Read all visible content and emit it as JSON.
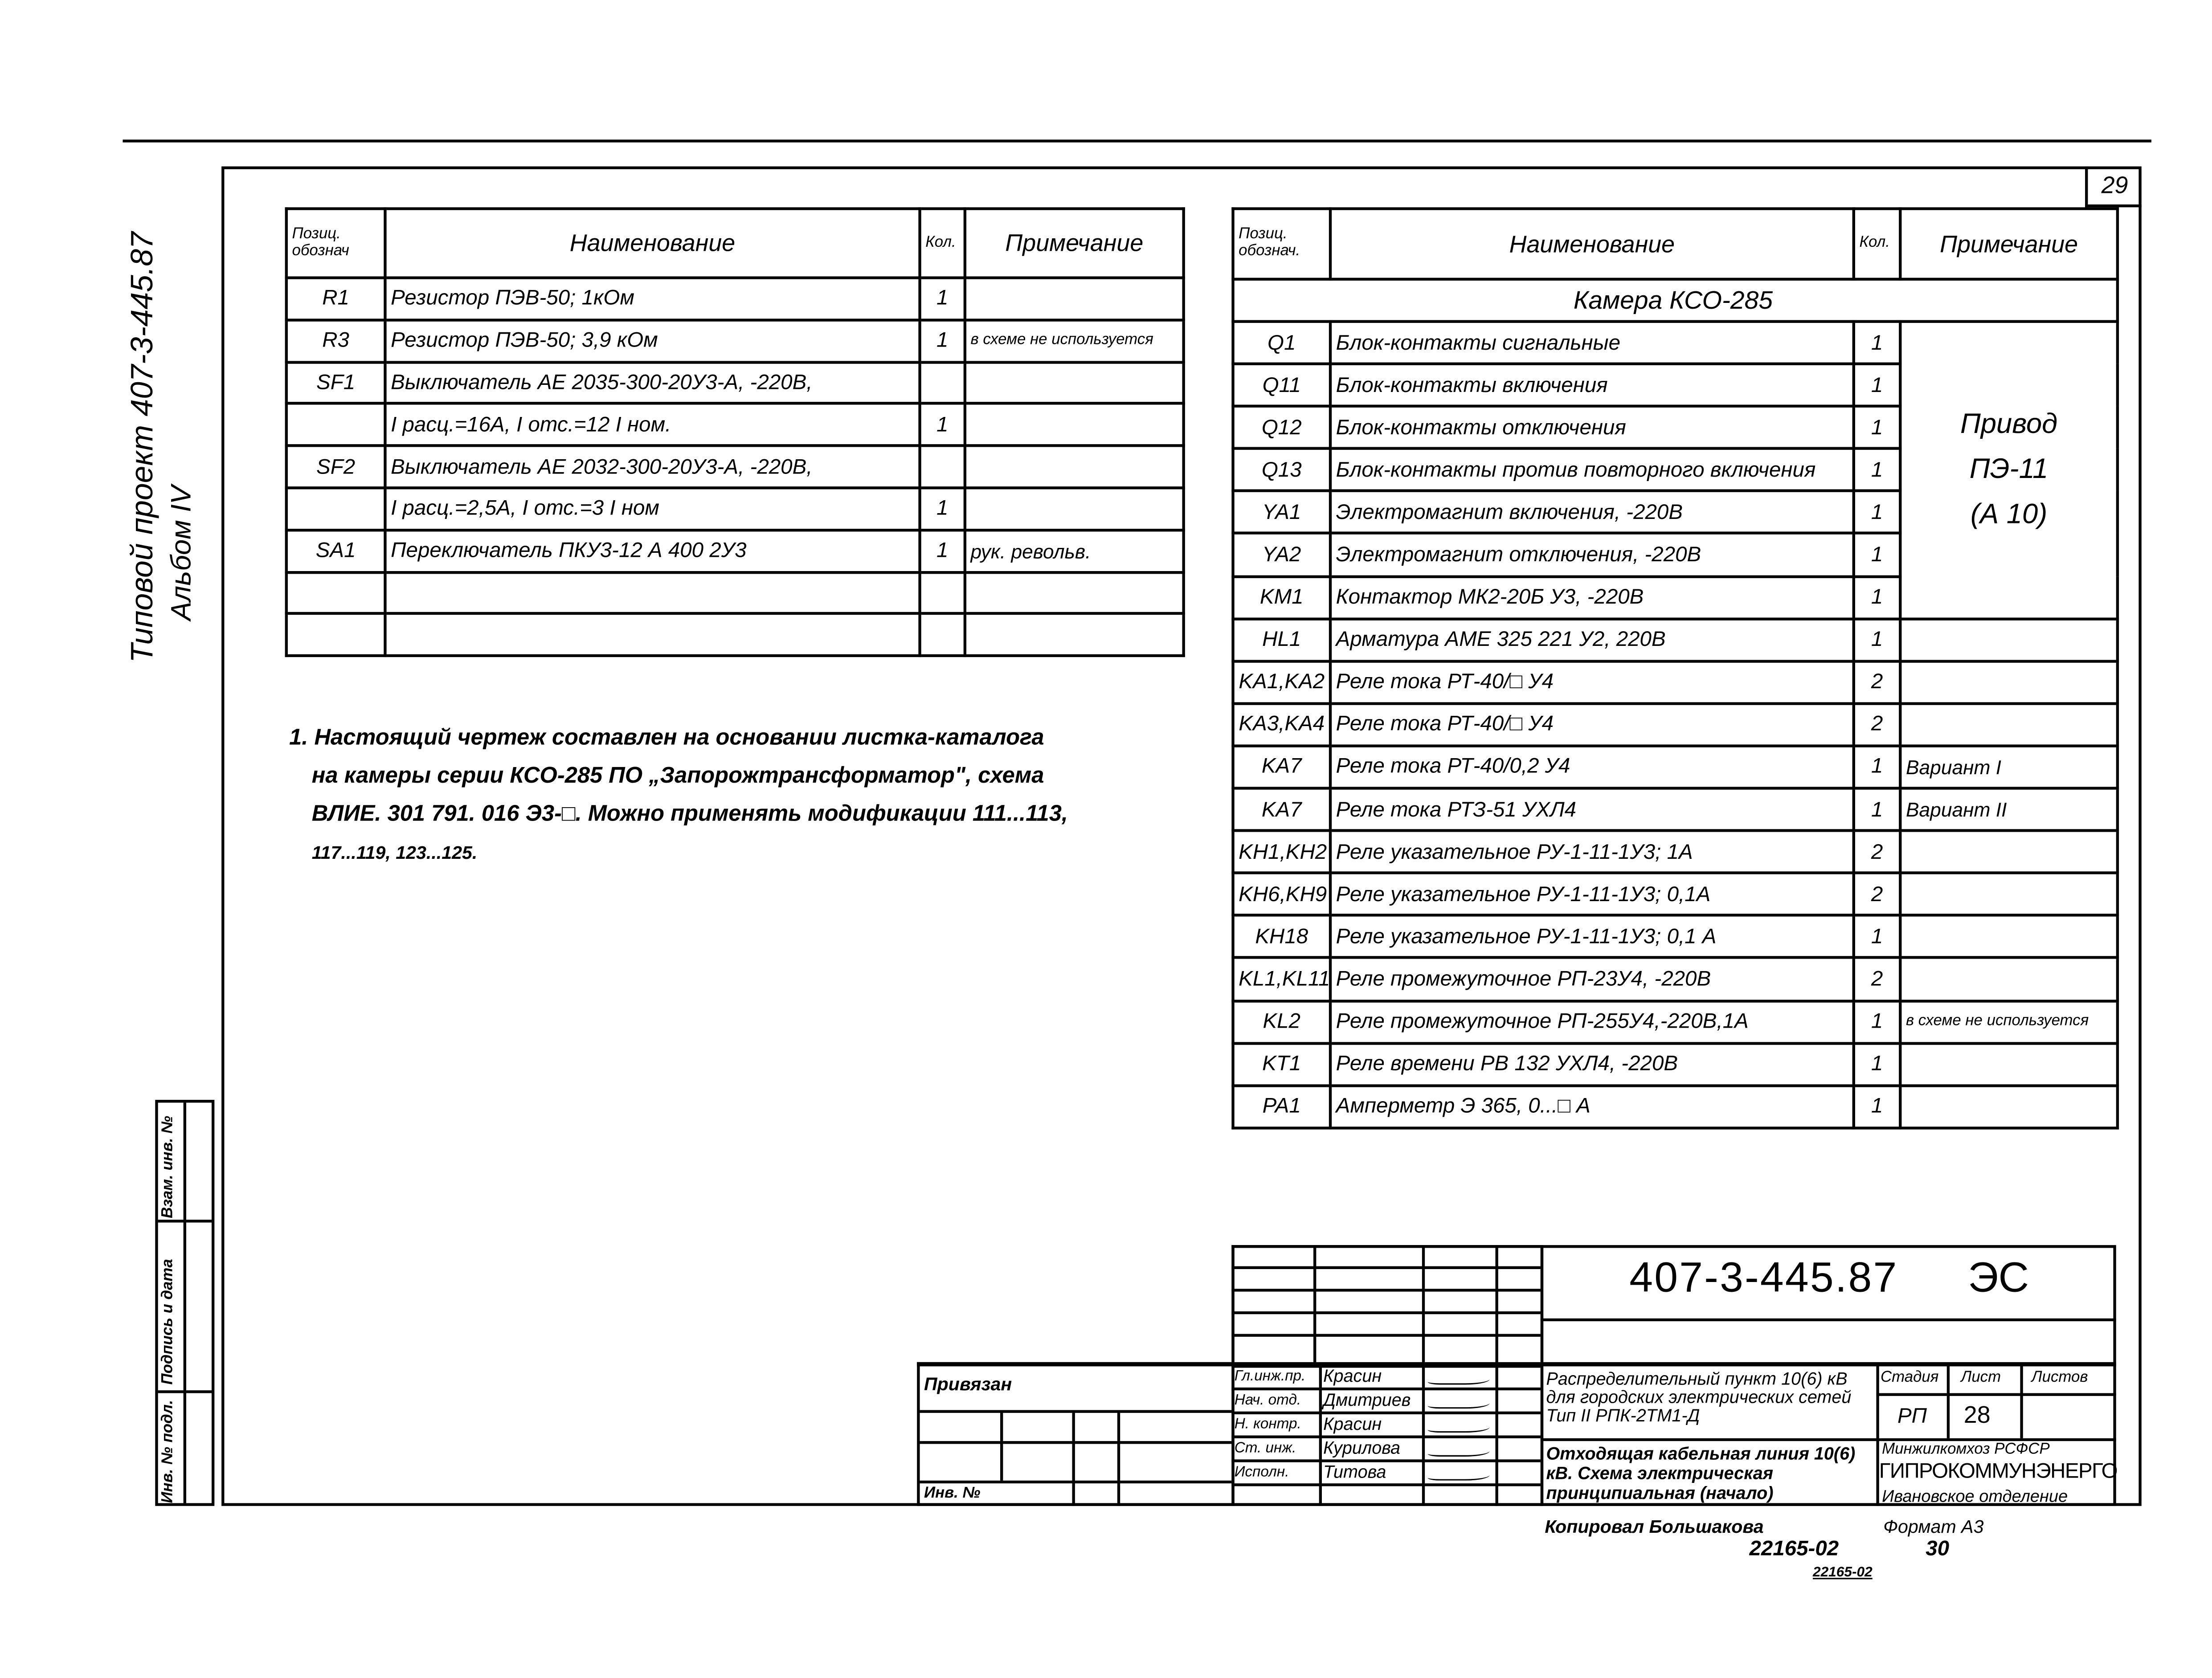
{
  "page_number": "29",
  "side_label": {
    "project": "Типовой проект 407-3-445.87",
    "album": "Альбом IV"
  },
  "side_stamp": [
    "Инв. № подл.",
    "Подпись и дата",
    "Взам. инв. №"
  ],
  "left_table": {
    "headers": [
      "Позиц. обознач",
      "Наименование",
      "Кол.",
      "Примечание"
    ],
    "rows": [
      {
        "pos": "R1",
        "name": "Резистор ПЭВ-50; 1кОм",
        "qty": "1",
        "note": ""
      },
      {
        "pos": "R3",
        "name": "Резистор ПЭВ-50; 3,9 кОм",
        "qty": "1",
        "note": "в схеме не используется"
      },
      {
        "pos": "SF1",
        "name": "Выключатель АЕ 2035-300-20У3-А, -220В,",
        "qty": "",
        "note": ""
      },
      {
        "pos": "",
        "name": "I расц.=16А, I отс.=12 I ном.",
        "qty": "1",
        "note": ""
      },
      {
        "pos": "SF2",
        "name": "Выключатель АЕ 2032-300-20У3-А, -220В,",
        "qty": "",
        "note": ""
      },
      {
        "pos": "",
        "name": "I расц.=2,5А, I отс.=3 I ном",
        "qty": "1",
        "note": ""
      },
      {
        "pos": "SA1",
        "name": "Переключатель ПКУ3-12 А 400 2У3",
        "qty": "1",
        "note": "рук. револьв."
      },
      {
        "pos": "",
        "name": "",
        "qty": "",
        "note": ""
      },
      {
        "pos": "",
        "name": "",
        "qty": "",
        "note": ""
      }
    ]
  },
  "right_table": {
    "headers": [
      "Позиц. обознач.",
      "Наименование",
      "Кол.",
      "Примечание"
    ],
    "section": "Камера КСО-285",
    "drive_note": [
      "Привод",
      "ПЭ-11",
      "(А 10)"
    ],
    "rows": [
      {
        "pos": "Q1",
        "name": "Блок-контакты сигнальные",
        "qty": "1",
        "note": ""
      },
      {
        "pos": "Q11",
        "name": "Блок-контакты включения",
        "qty": "1",
        "note": ""
      },
      {
        "pos": "Q12",
        "name": "Блок-контакты отключения",
        "qty": "1",
        "note": ""
      },
      {
        "pos": "Q13",
        "name": "Блок-контакты против повторного включения",
        "qty": "1",
        "note": ""
      },
      {
        "pos": "YA1",
        "name": "Электромагнит включения, -220В",
        "qty": "1",
        "note": ""
      },
      {
        "pos": "YA2",
        "name": "Электромагнит отключения, -220В",
        "qty": "1",
        "note": ""
      },
      {
        "pos": "KM1",
        "name": "Контактор МК2-20Б У3, -220В",
        "qty": "1",
        "note": ""
      },
      {
        "pos": "HL1",
        "name": "Арматура АМЕ 325 221 У2, 220В",
        "qty": "1",
        "note": ""
      },
      {
        "pos": "KA1,KA2",
        "name": "Реле тока РТ-40/□ У4",
        "qty": "2",
        "note": ""
      },
      {
        "pos": "KA3,KA4",
        "name": "Реле тока РТ-40/□ У4",
        "qty": "2",
        "note": ""
      },
      {
        "pos": "KA7",
        "name": "Реле тока РТ-40/0,2 У4",
        "qty": "1",
        "note": "Вариант I"
      },
      {
        "pos": "KA7",
        "name": "Реле тока РТЗ-51 УХЛ4",
        "qty": "1",
        "note": "Вариант II"
      },
      {
        "pos": "KH1,KH2",
        "name": "Реле указательное РУ-1-11-1У3; 1А",
        "qty": "2",
        "note": ""
      },
      {
        "pos": "KH6,KH9",
        "name": "Реле указательное РУ-1-11-1У3; 0,1А",
        "qty": "2",
        "note": ""
      },
      {
        "pos": "KH18",
        "name": "Реле указательное РУ-1-11-1У3; 0,1 А",
        "qty": "1",
        "note": ""
      },
      {
        "pos": "KL1,KL11",
        "name": "Реле промежуточное РП-23У4, -220В",
        "qty": "2",
        "note": ""
      },
      {
        "pos": "KL2",
        "name": "Реле промежуточное РП-255У4,-220В,1А",
        "qty": "1",
        "note": "в схеме не используется"
      },
      {
        "pos": "KT1",
        "name": "Реле времени РВ 132 УХЛ4, -220В",
        "qty": "1",
        "note": ""
      },
      {
        "pos": "PA1",
        "name": "Амперметр Э 365, 0...□ А",
        "qty": "1",
        "note": ""
      }
    ]
  },
  "notes": [
    "1. Настоящий чертеж составлен на основании листка-каталога",
    "на камеры серии КСО-285 ПО „Запорожтрансформатор\", схема",
    "ВЛИЕ. 301 791. 016 Э3-□. Можно применять модификации 111...113,",
    "117...119, 123...125."
  ],
  "title_block": {
    "doc_code": "407-3-445.87",
    "doc_type": "ЭС",
    "attached_label": "Привязан",
    "inv_label": "Инв. №",
    "signatures": [
      {
        "role": "Гл.инж.пр.",
        "name": "Красин"
      },
      {
        "role": "Нач. отд.",
        "name": "Дмитриев"
      },
      {
        "role": "Н. контр.",
        "name": "Красин"
      },
      {
        "role": "Ст. инж.",
        "name": "Курилова"
      },
      {
        "role": "Исполн.",
        "name": "Титова"
      }
    ],
    "object_title": "Распределительный пункт 10(6) кВ для городских электрических сетей Тип II РПК-2ТМ1-Д",
    "sheet_title": "Отходящая кабельная линия 10(6) кВ. Схема электрическая принципиальная (начало)",
    "stage_label": "Стадия",
    "sheet_label": "Лист",
    "sheets_label": "Листов",
    "stage": "РП",
    "sheet": "28",
    "sheets": "",
    "org_line1": "Минжилкомхоз РСФСР",
    "org_line2": "ГИПРОКОММУНЭНЕРГО",
    "org_line3": "Ивановское отделение"
  },
  "footer": {
    "copied": "Копировал Большакова",
    "format": "Формат А3",
    "archive": "22165-02",
    "archive_sheet": "30",
    "archive2": "22165-02"
  }
}
